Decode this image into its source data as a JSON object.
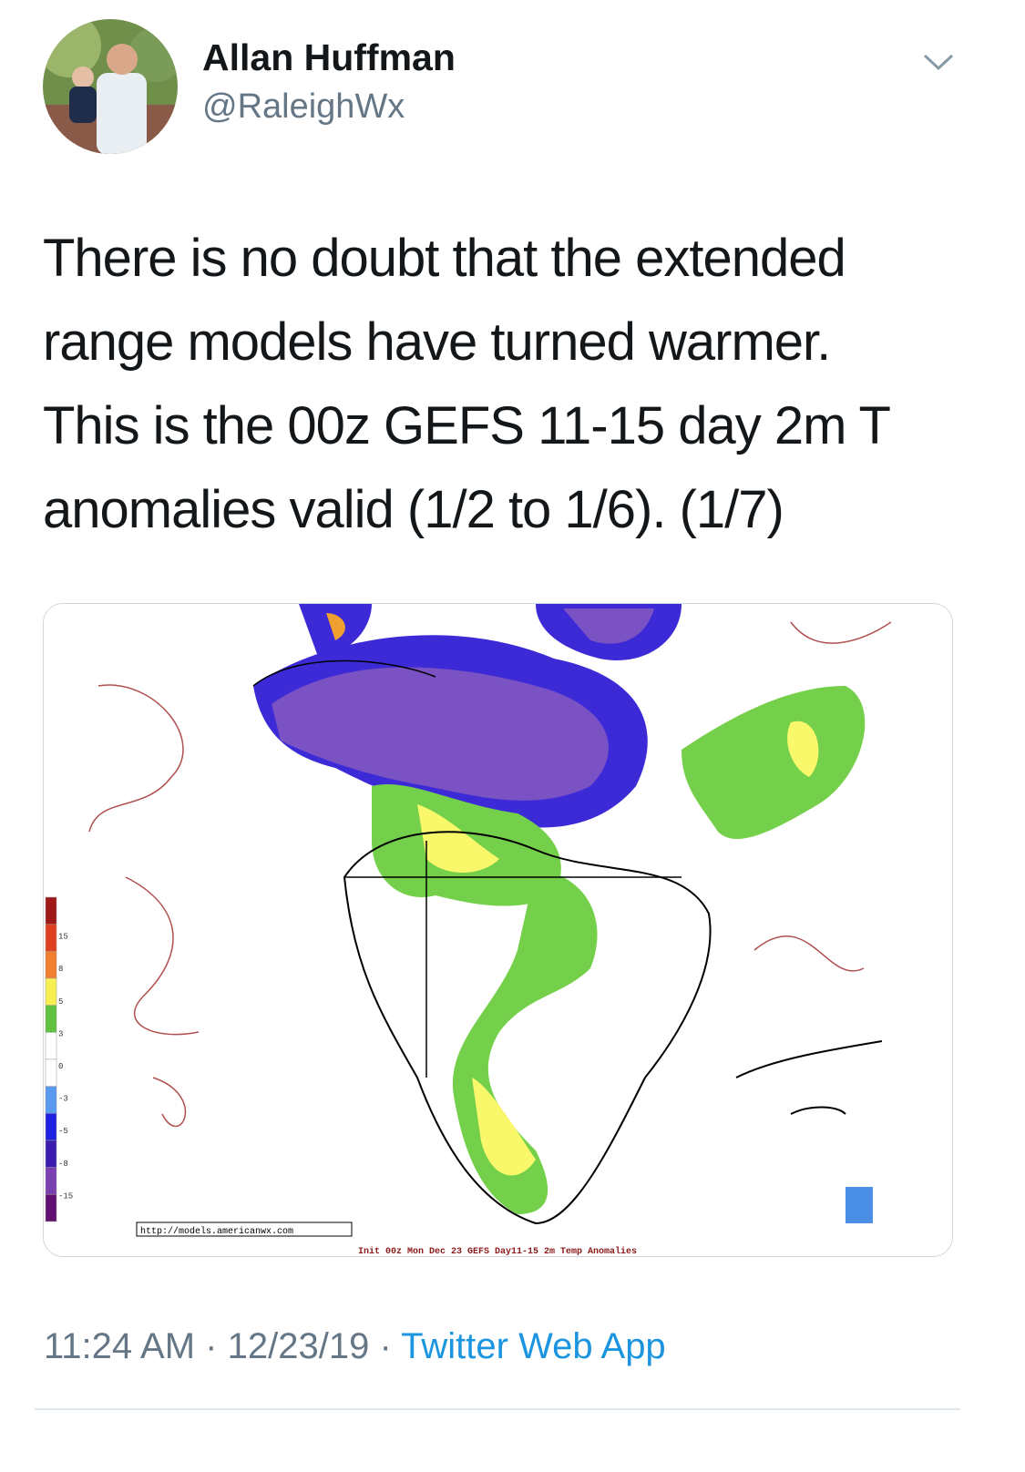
{
  "author": {
    "name": "Allan Huffman",
    "handle": "@RaleighWx"
  },
  "tweet": {
    "text_lines": [
      "There is no doubt that the extended",
      "range models have turned warmer.",
      "This is the 00z GEFS 11-15 day 2m T",
      "anomalies valid (1/2 to 1/6). (1/7)"
    ]
  },
  "media": {
    "legend_labels": [
      "15",
      "8",
      "5",
      "3",
      "0",
      "-3",
      "-5",
      "-8",
      "-15"
    ],
    "url": "http://models.americanwx.com",
    "caption": "Init 00z Mon Dec 23 GEFS Day11-15 2m Temp Anomalies"
  },
  "footer": {
    "time": "11:24 AM",
    "separator": "·",
    "date": "12/23/19",
    "source": "Twitter Web App"
  }
}
